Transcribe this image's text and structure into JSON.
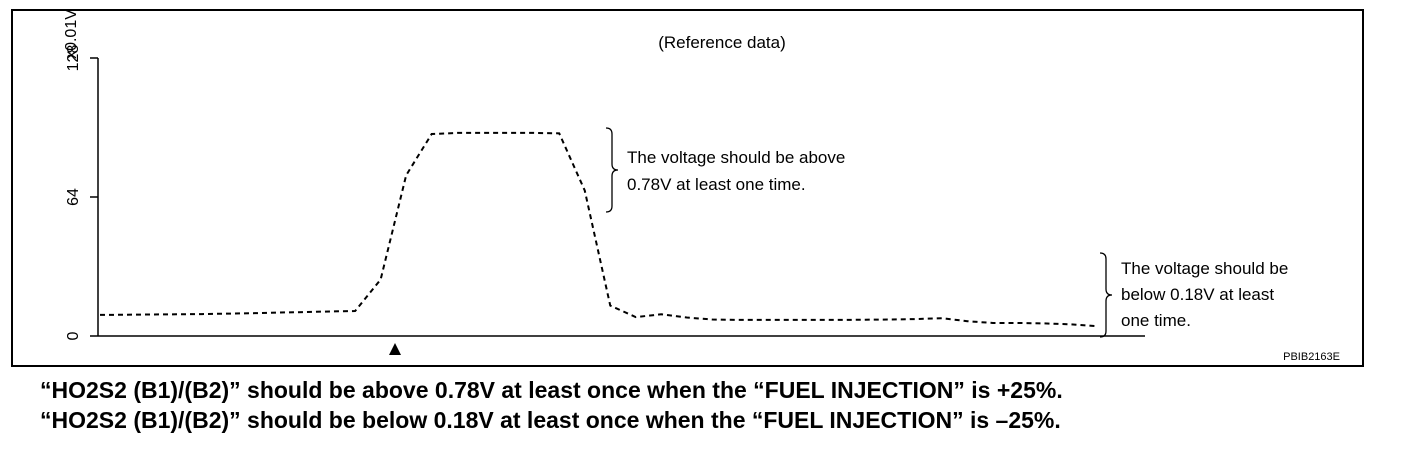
{
  "chart_data": {
    "type": "line",
    "title": "(Reference data)",
    "y_label": "x0.01V",
    "values": [
      9.7,
      9.8,
      9.9,
      10,
      10.1,
      10.3,
      10.5,
      10.8,
      11,
      11.3,
      11.5,
      26,
      74,
      93,
      93.5,
      93.5,
      93.5,
      93.5,
      93.3,
      67,
      14,
      8.7,
      10,
      8.5,
      7.6,
      7.4,
      7.4,
      7.4,
      7.4,
      7.4,
      7.5,
      7.6,
      7.8,
      8.2,
      6.8,
      6,
      6,
      5.8,
      5.4,
      4.6
    ],
    "color": "#000000",
    "ylim": [
      0,
      128
    ],
    "yticks": [
      0,
      64,
      128
    ],
    "annotations": [
      [
        "The voltage should be above",
        "0.78V at least one time."
      ],
      [
        "The voltage should be",
        "below 0.18V at least",
        "one time."
      ]
    ],
    "code": "PBIB2163E"
  },
  "caption": [
    "“HO2S2 (B1)/(B2)” should be above 0.78V at least once when the “FUEL INJECTION” is +25%.",
    "“HO2S2 (B1)/(B2)” should be below 0.18V at least once when the “FUEL INJECTION” is –25%."
  ]
}
